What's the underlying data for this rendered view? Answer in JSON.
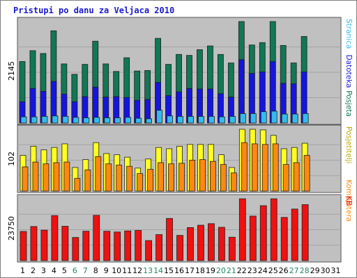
{
  "chart_data": {
    "type": "bar",
    "title": "Pristupi po danu za Veljaca 2010",
    "categories": [
      "1",
      "2",
      "3",
      "4",
      "5",
      "6",
      "7",
      "8",
      "9",
      "10",
      "11",
      "12",
      "13",
      "14",
      "15",
      "16",
      "17",
      "18",
      "19",
      "20",
      "21",
      "22",
      "23",
      "24",
      "25",
      "26",
      "27",
      "28",
      "29",
      "30",
      "31"
    ],
    "weekend_days": [
      "6",
      "7",
      "13",
      "14",
      "20",
      "21",
      "27",
      "28"
    ],
    "panels": [
      {
        "axis_label": "2145",
        "axis_max": 2145,
        "series": [
          {
            "name": "Posjeta",
            "color": "#117755",
            "values": [
              1300,
              1530,
              1470,
              1950,
              1250,
              1030,
              1240,
              1730,
              1250,
              1090,
              1380,
              1100,
              1110,
              1790,
              1240,
              1450,
              1430,
              1550,
              1630,
              1450,
              1270,
              2145,
              1650,
              1700,
              2145,
              1640,
              1270,
              1830,
              0,
              0,
              0
            ]
          },
          {
            "name": "Datoteka",
            "color": "#1515dd",
            "values": [
              450,
              730,
              670,
              880,
              610,
              450,
              560,
              760,
              550,
              560,
              540,
              480,
              500,
              860,
              580,
              660,
              730,
              720,
              720,
              620,
              550,
              1340,
              1050,
              1080,
              1300,
              840,
              830,
              1080,
              0,
              0,
              0
            ]
          },
          {
            "name": "Stranica",
            "color": "#33bbee",
            "values": [
              130,
              130,
              140,
              150,
              140,
              120,
              110,
              120,
              110,
              110,
              120,
              100,
              90,
              270,
              150,
              140,
              140,
              140,
              140,
              130,
              140,
              200,
              200,
              240,
              250,
              190,
              190,
              200,
              0,
              0,
              0
            ]
          }
        ]
      },
      {
        "axis_label": "102",
        "axis_max": 102,
        "series": [
          {
            "name": "Posjetitelji",
            "color": "#ffff22",
            "values": [
              59,
              74,
              68,
              72,
              78,
              39,
              52,
              80,
              62,
              60,
              56,
              38,
              53,
              72,
              70,
              74,
              77,
              77,
              77,
              60,
              39,
              102,
              102,
              101,
              92,
              70,
              72,
              79,
              0,
              0,
              0
            ]
          },
          {
            "name": "Kompjutera",
            "color": "#ff8811",
            "values": [
              40,
              48,
              45,
              47,
              48,
              21,
              35,
              57,
              45,
              43,
              41,
              29,
              36,
              47,
              45,
              46,
              51,
              52,
              49,
              44,
              30,
              80,
              78,
              77,
              78,
              44,
              47,
              59,
              0,
              0,
              0
            ]
          }
        ]
      },
      {
        "axis_label": "23750",
        "axis_max": 23750,
        "series": [
          {
            "name": "KB",
            "color": "#ee1111",
            "values": [
              11200,
              13100,
              11700,
              17300,
              13200,
              8900,
              11300,
              17400,
              11300,
              11000,
              11400,
              11600,
              7700,
              10000,
              16200,
              9700,
              12700,
              13600,
              14200,
              12800,
              9000,
              23750,
              17100,
              21100,
              23750,
              16600,
              19800,
              21500,
              0,
              0,
              0
            ]
          }
        ]
      }
    ]
  }
}
